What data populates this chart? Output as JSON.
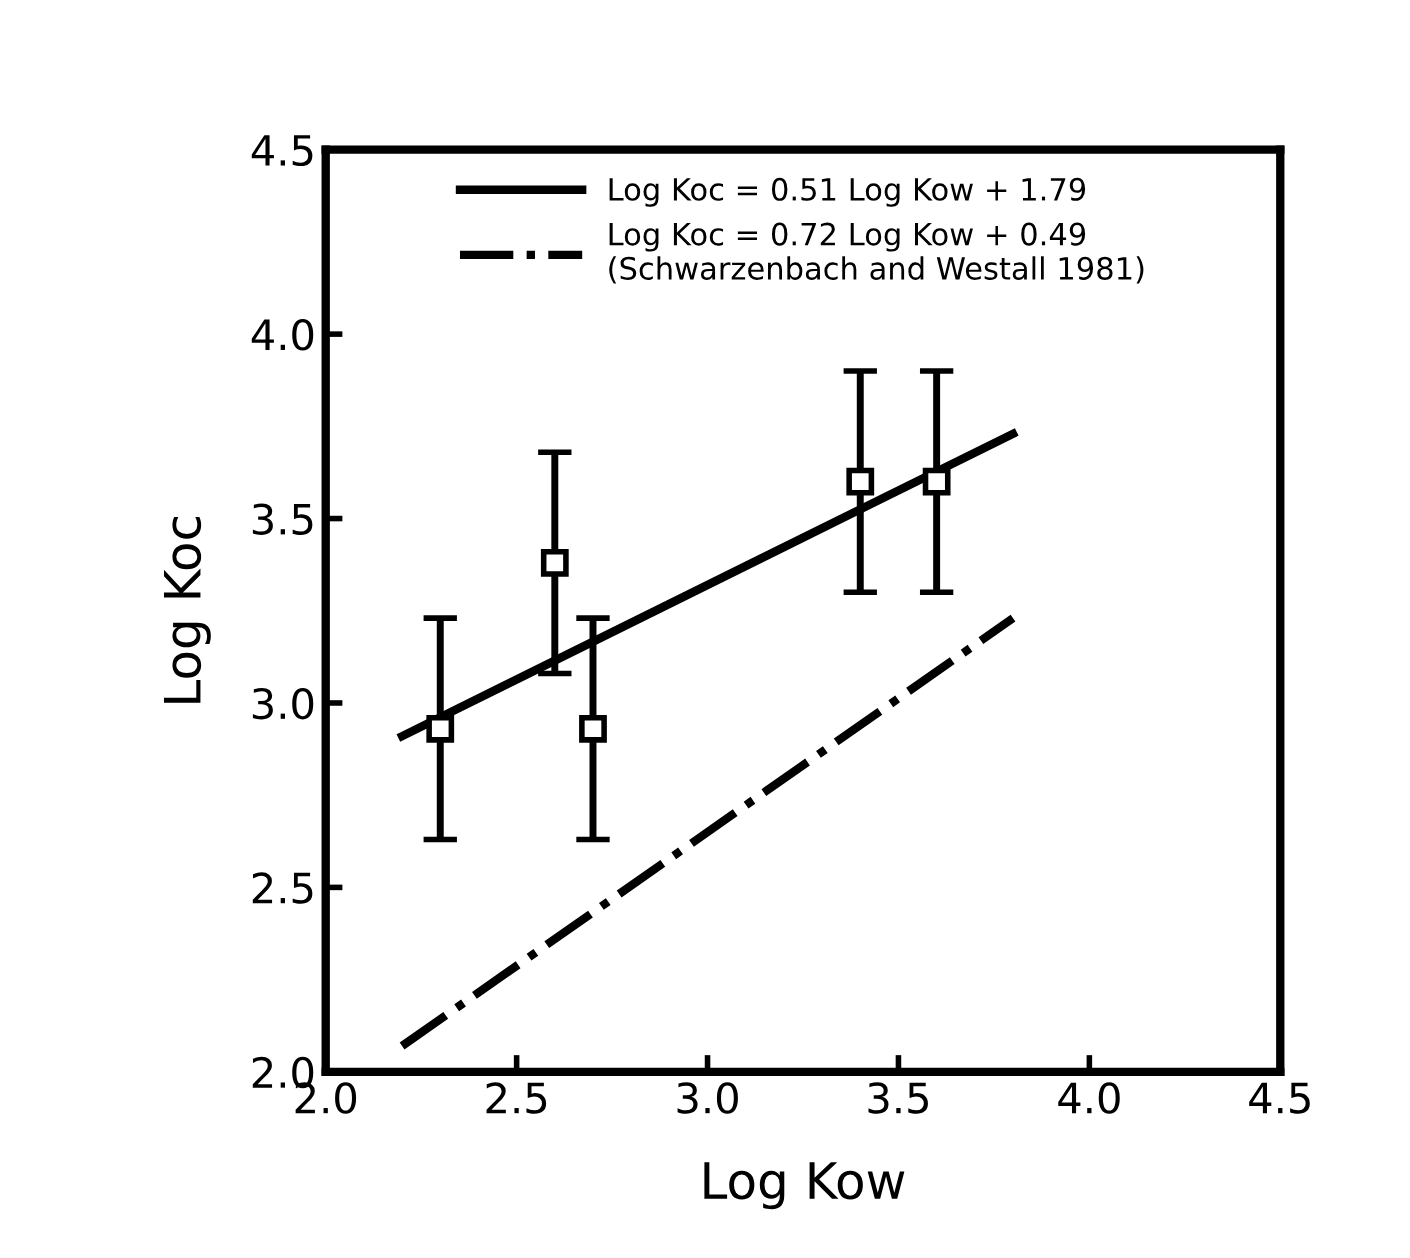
{
  "chart_data": {
    "type": "scatter",
    "xlabel": "Log Kow",
    "ylabel": "Log Koc",
    "xlim": [
      2.0,
      4.5
    ],
    "ylim": [
      2.0,
      4.5
    ],
    "xticks": [
      {
        "value": 2.0,
        "label": "2.0"
      },
      2.5,
      {
        "value": 3.0,
        "label": "3.0"
      },
      3.5,
      {
        "value": 4.0,
        "label": "4.0"
      },
      4.5
    ],
    "yticks": [
      {
        "value": 2.0,
        "label": "2.0"
      },
      2.5,
      {
        "value": 3.0,
        "label": "3.0"
      },
      3.5,
      {
        "value": 4.0,
        "label": "4.0"
      },
      4.5
    ],
    "grid": false,
    "legend": "top",
    "series": [
      {
        "color": "#000000",
        "marker": "square",
        "x": [
          2.3,
          2.6,
          2.7,
          3.4,
          3.6
        ],
        "values": [
          2.93,
          3.38,
          2.93,
          3.6,
          3.6
        ],
        "errors": [
          0.3,
          0.3,
          0.3,
          0.3,
          0.3
        ]
      },
      {
        "type": "line",
        "name": "Log Koc = 0.51 Log Kow + 1.79",
        "color": "#000000",
        "line_style": "solid",
        "x": [
          2.2,
          3.8
        ],
        "values": [
          2.91,
          3.73
        ]
      },
      {
        "type": "line",
        "name": "Log Koc = 0.72 Log Kow + 0.49\n(Schwarzenbach and Westall 1981)",
        "color": "#000000",
        "line_style": "dashdot",
        "x": [
          2.2,
          3.8
        ],
        "values": [
          2.07,
          3.23
        ]
      }
    ]
  }
}
